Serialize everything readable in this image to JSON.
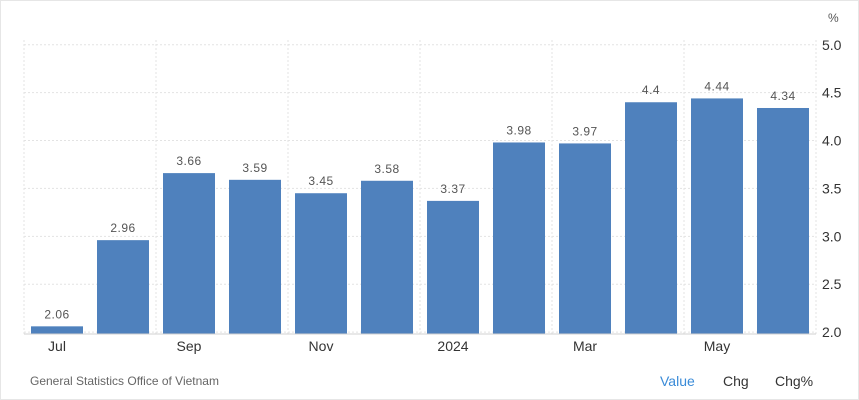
{
  "chart_data": {
    "type": "bar",
    "categories": [
      "Jul",
      "",
      "Sep",
      "",
      "Nov",
      "",
      "2024",
      "",
      "Mar",
      "",
      "May",
      ""
    ],
    "values": [
      2.06,
      2.96,
      3.66,
      3.59,
      3.45,
      3.58,
      3.37,
      3.98,
      3.97,
      4.4,
      4.44,
      4.34
    ],
    "value_labels": [
      "2.06",
      "2.96",
      "3.66",
      "3.59",
      "3.45",
      "3.58",
      "3.37",
      "3.98",
      "3.97",
      "4.4",
      "4.44",
      "4.34"
    ],
    "ylim": [
      1.98,
      5.05
    ],
    "yticks": [
      "2.0",
      "2.5",
      "3.0",
      "3.5",
      "4.0",
      "4.5",
      "5.0"
    ],
    "ytick_values": [
      2.0,
      2.5,
      3.0,
      3.5,
      4.0,
      4.5,
      5.0
    ],
    "y_unit": "%",
    "grid": true,
    "bar_color": "#4f81bd"
  },
  "footer": {
    "source": "General Statistics Office of Vietnam",
    "tabs": [
      "Value",
      "Chg",
      "Chg%"
    ],
    "active_tab": "Value",
    "active_color": "#3a8bd8"
  }
}
